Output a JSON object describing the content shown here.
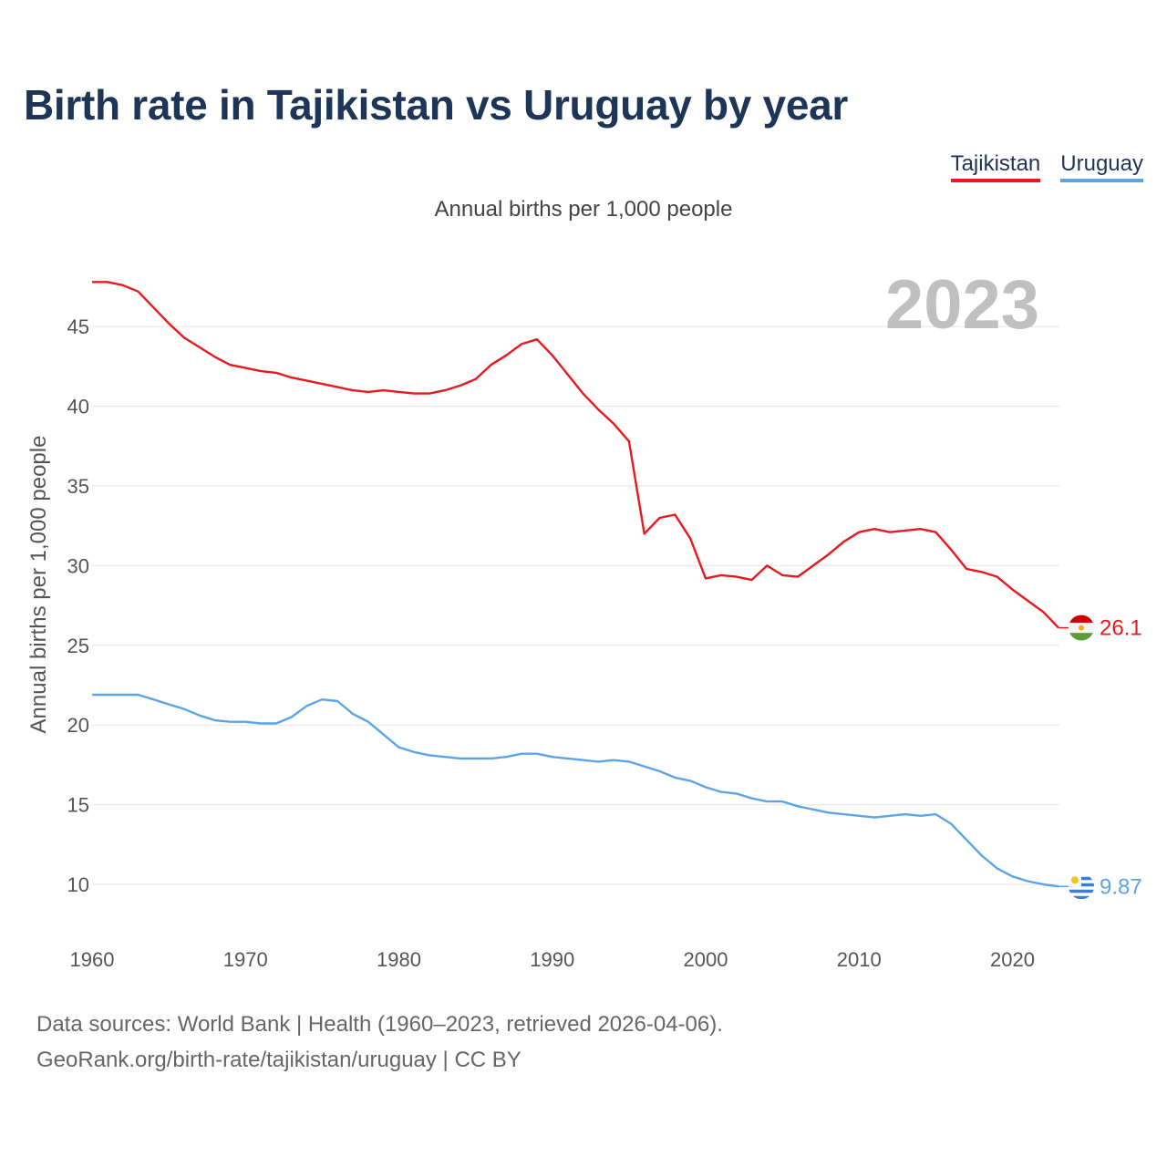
{
  "title": "Birth rate in Tajikistan vs Uruguay by year",
  "legend": [
    {
      "name": "Tajikistan",
      "color": "#e8191f"
    },
    {
      "name": "Uruguay",
      "color": "#5ca4e8"
    }
  ],
  "subtitle": "Annual births per 1,000 people",
  "footer": {
    "line1": "Data sources: World Bank | Health (1960–2023, retrieved 2026-04-06).",
    "line2": "GeoRank.org/birth-rate/tajikistan/uruguay | CC BY"
  },
  "chart_data": {
    "type": "line",
    "title": "Birth rate in Tajikistan vs Uruguay by year",
    "ylabel": "Annual births per 1,000 people",
    "xlabel": "",
    "year_watermark": "2023",
    "xlim": [
      1960,
      2023
    ],
    "ylim": [
      6.5,
      49
    ],
    "x_ticks": [
      1960,
      1970,
      1980,
      1990,
      2000,
      2010,
      2020
    ],
    "y_ticks": [
      10,
      15,
      20,
      25,
      30,
      35,
      40,
      45
    ],
    "grid": true,
    "legend_position": "top-right",
    "x": [
      1960,
      1961,
      1962,
      1963,
      1964,
      1965,
      1966,
      1967,
      1968,
      1969,
      1970,
      1971,
      1972,
      1973,
      1974,
      1975,
      1976,
      1977,
      1978,
      1979,
      1980,
      1981,
      1982,
      1983,
      1984,
      1985,
      1986,
      1987,
      1988,
      1989,
      1990,
      1991,
      1992,
      1993,
      1994,
      1995,
      1996,
      1997,
      1998,
      1999,
      2000,
      2001,
      2002,
      2003,
      2004,
      2005,
      2006,
      2007,
      2008,
      2009,
      2010,
      2011,
      2012,
      2013,
      2014,
      2015,
      2016,
      2017,
      2018,
      2019,
      2020,
      2021,
      2022,
      2023
    ],
    "series": [
      {
        "name": "Tajikistan",
        "color": "#e8191f",
        "end_label": "26.1",
        "values": [
          47.8,
          47.8,
          47.6,
          47.2,
          46.2,
          45.2,
          44.3,
          43.7,
          43.1,
          42.6,
          42.4,
          42.2,
          42.1,
          41.8,
          41.6,
          41.4,
          41.2,
          41.0,
          40.9,
          41.0,
          40.9,
          40.8,
          40.8,
          41.0,
          41.3,
          41.7,
          42.6,
          43.2,
          43.9,
          44.2,
          43.2,
          42.0,
          40.8,
          39.8,
          38.9,
          37.8,
          32.0,
          33.0,
          33.2,
          31.7,
          29.2,
          29.4,
          29.3,
          29.1,
          30.0,
          29.4,
          29.3,
          30.0,
          30.7,
          31.5,
          32.1,
          32.3,
          32.1,
          32.2,
          32.3,
          32.1,
          31.0,
          29.8,
          29.6,
          29.3,
          28.5,
          27.8,
          27.1,
          26.1
        ]
      },
      {
        "name": "Uruguay",
        "color": "#5ca4e8",
        "end_label": "9.87",
        "values": [
          21.9,
          21.9,
          21.9,
          21.9,
          21.6,
          21.3,
          21.0,
          20.6,
          20.3,
          20.2,
          20.2,
          20.1,
          20.1,
          20.5,
          21.2,
          21.6,
          21.5,
          20.7,
          20.2,
          19.4,
          18.6,
          18.3,
          18.1,
          18.0,
          17.9,
          17.9,
          17.9,
          18.0,
          18.2,
          18.2,
          18.0,
          17.9,
          17.8,
          17.7,
          17.8,
          17.7,
          17.4,
          17.1,
          16.7,
          16.5,
          16.1,
          15.8,
          15.7,
          15.4,
          15.2,
          15.2,
          14.9,
          14.7,
          14.5,
          14.4,
          14.3,
          14.2,
          14.3,
          14.4,
          14.3,
          14.4,
          13.8,
          12.8,
          11.8,
          11.0,
          10.5,
          10.2,
          10.0,
          9.87
        ]
      }
    ]
  }
}
